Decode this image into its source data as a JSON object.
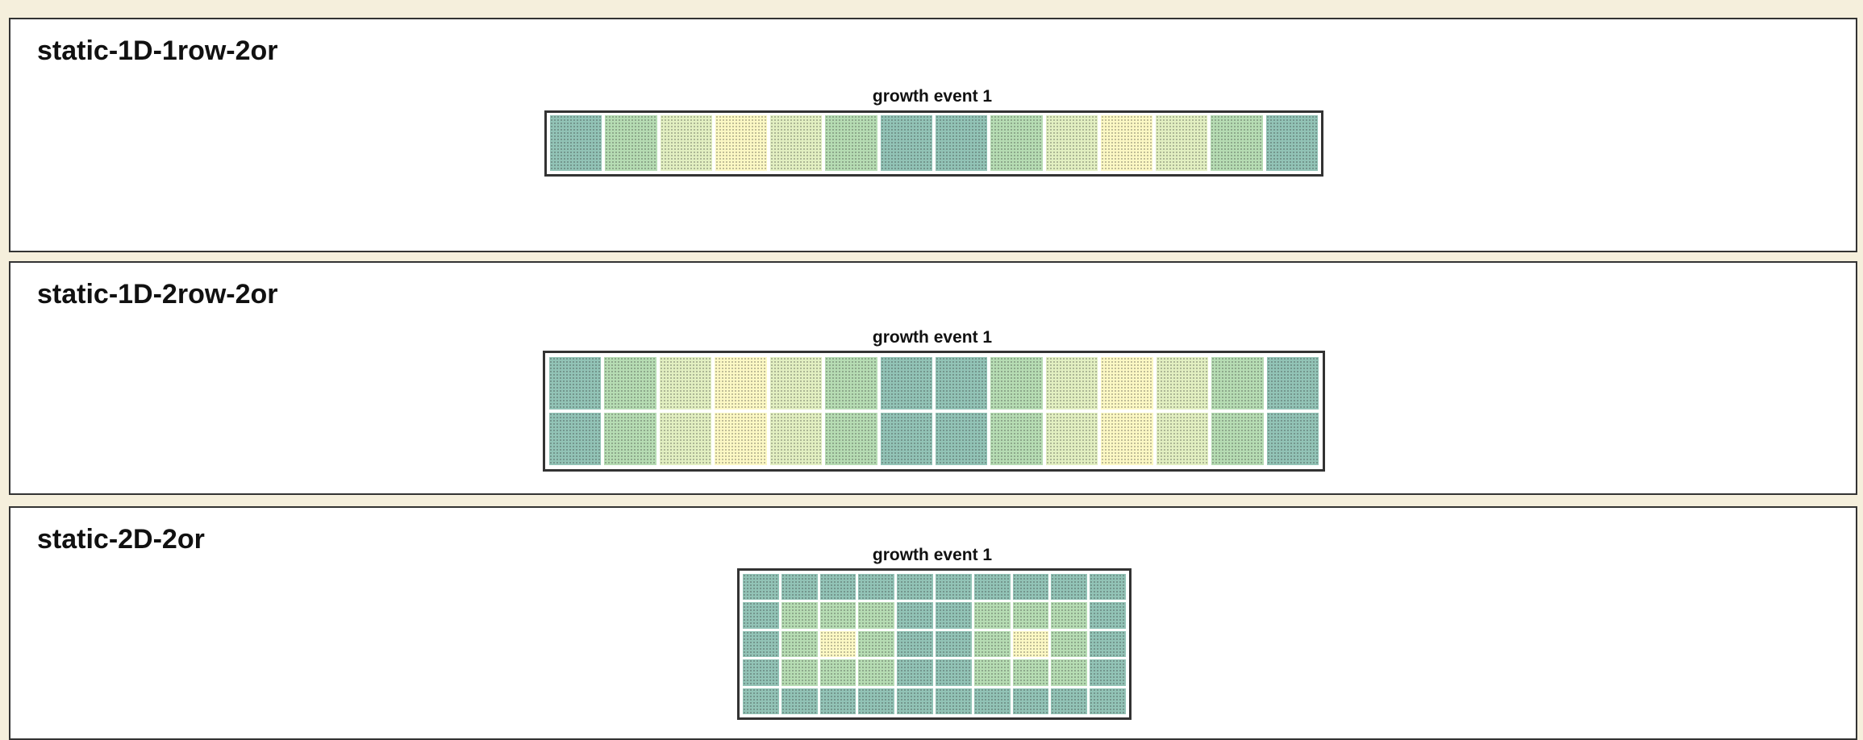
{
  "palette": [
    "#fcf8c4",
    "#e2efc1",
    "#b6dcb3",
    "#92c3b6"
  ],
  "panels": [
    {
      "title": "static-1D-1row-2or",
      "events": [
        {
          "label": "growth event 1",
          "grid": [
            [
              3,
              2,
              1,
              0,
              1,
              2,
              3,
              3,
              2,
              1,
              0,
              1,
              2,
              3
            ]
          ]
        }
      ]
    },
    {
      "title": "static-1D-2row-2or",
      "events": [
        {
          "label": "growth event 1",
          "grid": [
            [
              3,
              2,
              1,
              0,
              1,
              2,
              3,
              3,
              2,
              1,
              0,
              1,
              2,
              3
            ],
            [
              3,
              2,
              1,
              0,
              1,
              2,
              3,
              3,
              2,
              1,
              0,
              1,
              2,
              3
            ]
          ]
        }
      ]
    },
    {
      "title": "static-2D-2or",
      "events": [
        {
          "label": "growth event 1",
          "grid": [
            [
              3,
              3,
              3,
              3,
              3,
              3,
              3,
              3,
              3,
              3
            ],
            [
              3,
              2,
              2,
              2,
              3,
              3,
              2,
              2,
              2,
              3
            ],
            [
              3,
              2,
              0,
              2,
              3,
              3,
              2,
              0,
              2,
              3
            ],
            [
              3,
              2,
              2,
              2,
              3,
              3,
              2,
              2,
              2,
              3
            ],
            [
              3,
              3,
              3,
              3,
              3,
              3,
              3,
              3,
              3,
              3
            ]
          ]
        }
      ]
    }
  ]
}
